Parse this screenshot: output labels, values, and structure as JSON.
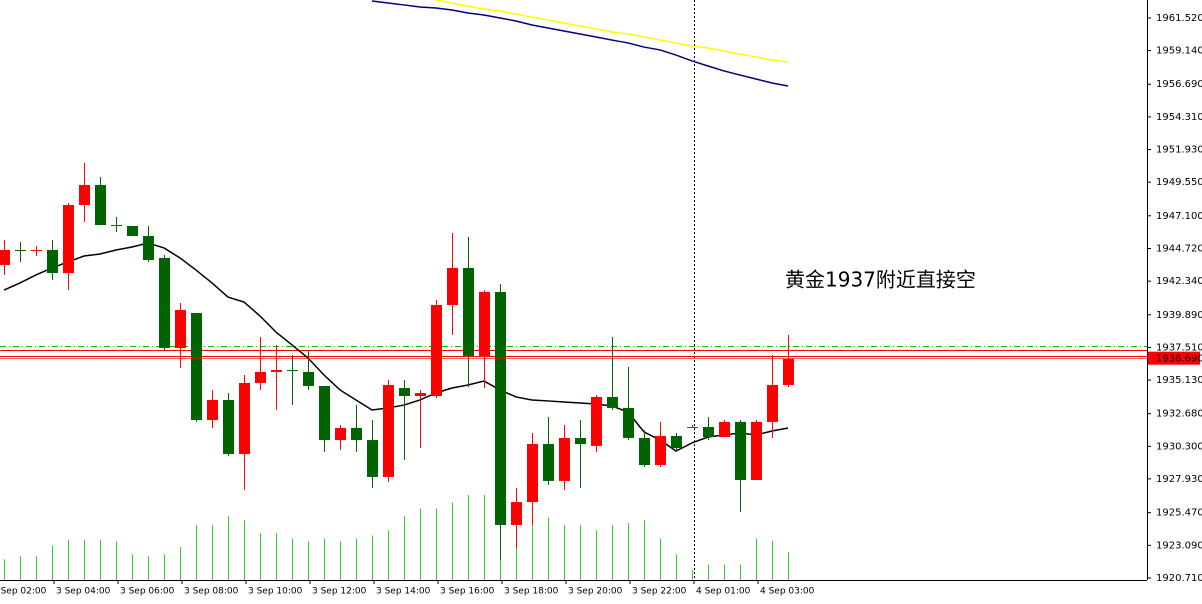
{
  "chart_data": {
    "type": "candlestick",
    "categories": [
      "3 Sep 02:00",
      null,
      null,
      null,
      "3 Sep 04:00",
      null,
      null,
      null,
      "3 Sep 06:00",
      null,
      null,
      null,
      "3 Sep 08:00",
      null,
      null,
      null,
      "3 Sep 10:00",
      null,
      null,
      null,
      "3 Sep 12:00",
      null,
      null,
      null,
      "3 Sep 14:00",
      null,
      null,
      null,
      "3 Sep 16:00",
      null,
      null,
      null,
      "3 Sep 18:00",
      null,
      null,
      null,
      "3 Sep 20:00",
      null,
      null,
      null,
      "3 Sep 22:00",
      null,
      null,
      null,
      "4 Sep 01:00",
      null,
      null,
      null,
      "4 Sep 03:00",
      null
    ],
    "open": [
      1943.52,
      1944.61,
      1944.58,
      1944.61,
      1942.93,
      1947.89,
      1949.35,
      1946.43,
      1946.36,
      1945.63,
      1944.03,
      1937.47,
      1940.02,
      1932.22,
      1933.68,
      1929.74,
      1934.92,
      1935.72,
      1935.86,
      1935.72,
      1934.7,
      1930.76,
      1931.64,
      1930.76,
      1928.07,
      1934.55,
      1933.97,
      1933.97,
      1940.6,
      1943.3,
      1936.89,
      1941.55,
      1924.57,
      1926.24,
      1930.47,
      1927.78,
      1930.91,
      1930.33,
      1933.9,
      1933.1,
      1930.91,
      1928.94,
      1931.06,
      1931.68,
      1931.71,
      1930.98,
      1932.08,
      1927.85,
      1932.08,
      1934.77
    ],
    "high": [
      1945.34,
      1945.19,
      1944.9,
      1945.34,
      1948.04,
      1950.95,
      1949.93,
      1947.02,
      1946.36,
      1946.36,
      1944.25,
      1940.75,
      1940.02,
      1934.41,
      1934.19,
      1935.5,
      1938.27,
      1937.69,
      1936.96,
      1937.32,
      1934.7,
      1931.86,
      1933.31,
      1932.22,
      1935.14,
      1935.14,
      1934.41,
      1940.97,
      1945.85,
      1945.56,
      1941.69,
      1942.13,
      1927.27,
      1931.27,
      1932.44,
      1931.86,
      1932.22,
      1934.04,
      1938.27,
      1936.08,
      1931.49,
      1932.08,
      1931.27,
      1931.86,
      1932.44,
      1932.22,
      1932.22,
      1932.22,
      1936.96,
      1938.42
    ],
    "low": [
      1942.79,
      1943.74,
      1944.17,
      1942.42,
      1941.69,
      1946.65,
      1946.43,
      1945.92,
      1945.63,
      1943.74,
      1937.32,
      1936.01,
      1932.08,
      1931.64,
      1929.6,
      1927.12,
      1934.41,
      1932.95,
      1933.31,
      1934.41,
      1929.89,
      1930.03,
      1929.89,
      1927.27,
      1927.7,
      1929.31,
      1930.18,
      1933.82,
      1938.42,
      1934.63,
      1934.55,
      1922.02,
      1922.89,
      1924.57,
      1927.48,
      1927.12,
      1927.27,
      1929.89,
      1932.95,
      1930.76,
      1928.8,
      1928.8,
      1929.89,
      1931.64,
      1930.76,
      1930.98,
      1925.52,
      1927.85,
      1930.91,
      1934.63
    ],
    "close": [
      1944.61,
      1944.58,
      1944.61,
      1942.93,
      1947.89,
      1949.35,
      1946.43,
      1946.36,
      1945.63,
      1943.88,
      1937.47,
      1940.24,
      1932.22,
      1933.68,
      1929.74,
      1934.92,
      1935.72,
      1935.86,
      1935.8,
      1934.7,
      1930.76,
      1931.64,
      1930.76,
      1928.07,
      1934.77,
      1933.97,
      1934.19,
      1940.6,
      1943.3,
      1936.89,
      1941.55,
      1924.57,
      1926.24,
      1930.47,
      1927.78,
      1930.91,
      1930.47,
      1933.9,
      1933.1,
      1930.91,
      1928.94,
      1931.06,
      1930.18,
      1931.71,
      1930.98,
      1932.08,
      1927.85,
      1932.08,
      1934.77,
      1936.69
    ],
    "up_color": "#ff0000",
    "down_color": "#006400",
    "volume": {
      "color": "#33cc33",
      "values": [
        20,
        23,
        23,
        33,
        39,
        39,
        39,
        37,
        25,
        23,
        25,
        32,
        53,
        53,
        62,
        58,
        45,
        45,
        40,
        37,
        40,
        37,
        40,
        43,
        48,
        62,
        69,
        69,
        75,
        82,
        82,
        80,
        68,
        60,
        60,
        53,
        53,
        48,
        53,
        55,
        58,
        40,
        25,
        10,
        15,
        15,
        15,
        40,
        38,
        27
      ]
    },
    "overlays": [
      {
        "color": "#000000",
        "values": [
          1941.69,
          1942.21,
          1942.79,
          1943.3,
          1943.74,
          1944.17,
          1944.32,
          1944.61,
          1944.83,
          1945.12,
          1944.76,
          1944.03,
          1943.15,
          1942.21,
          1941.18,
          1940.82,
          1939.8,
          1938.63,
          1937.69,
          1936.74,
          1935.5,
          1934.41,
          1933.68,
          1932.95,
          1933.1,
          1933.31,
          1933.68,
          1934.19,
          1934.55,
          1934.77,
          1935.06,
          1934.41,
          1933.9,
          1933.68,
          1933.61,
          1933.53,
          1933.46,
          1933.39,
          1933.24,
          1932.8,
          1931.35,
          1930.76,
          1929.96,
          1930.55,
          1930.98,
          1931.13,
          1931.27,
          1931.13,
          1931.42,
          1931.64
        ]
      },
      {
        "color": "#ffff00",
        "values": [
          null,
          null,
          null,
          null,
          null,
          null,
          null,
          null,
          null,
          null,
          null,
          null,
          null,
          null,
          null,
          null,
          null,
          null,
          null,
          null,
          null,
          null,
          null,
          null,
          null,
          null,
          null,
          1962.83,
          1962.61,
          1962.39,
          1962.17,
          1962.03,
          1961.81,
          1961.59,
          1961.37,
          1961.15,
          1960.94,
          1960.72,
          1960.5,
          1960.35,
          1960.13,
          1959.91,
          1959.7,
          1959.48,
          1959.33,
          1959.11,
          1958.89,
          1958.68,
          1958.46,
          1958.31
        ]
      },
      {
        "color": "#000080",
        "values": [
          null,
          null,
          null,
          null,
          null,
          null,
          null,
          null,
          null,
          null,
          null,
          null,
          null,
          null,
          null,
          null,
          null,
          null,
          null,
          null,
          null,
          null,
          null,
          1962.76,
          1962.61,
          1962.47,
          1962.32,
          1962.25,
          1962.1,
          1961.88,
          1961.74,
          1961.52,
          1961.3,
          1961.01,
          1960.79,
          1960.57,
          1960.35,
          1960.13,
          1959.91,
          1959.7,
          1959.4,
          1959.19,
          1958.82,
          1958.39,
          1958.02,
          1957.66,
          1957.36,
          1957.07,
          1956.78,
          1956.56
        ]
      }
    ],
    "levels": [
      {
        "value": 1937.61,
        "color": "#00c000",
        "style": "dashdot"
      },
      {
        "value": 1937.32,
        "color": "#ff0000",
        "style": "solid"
      },
      {
        "value": 1936.89,
        "color": "#ff0000",
        "style": "solid"
      }
    ],
    "current_price": {
      "value": 1936.69,
      "label": "1936.690",
      "color": "#ff0000"
    },
    "annotation": {
      "text": "黄金1937附近直接空",
      "color": "#ff2020"
    },
    "ylim": [
      1920.56,
      1962.83
    ],
    "yticks": [
      {
        "value": 1961.52,
        "label": "1961.520"
      },
      {
        "value": 1959.14,
        "label": "1959.140"
      },
      {
        "value": 1956.69,
        "label": "1956.690"
      },
      {
        "value": 1954.31,
        "label": "1954.310"
      },
      {
        "value": 1951.93,
        "label": "1951.930"
      },
      {
        "value": 1949.55,
        "label": "1949.550"
      },
      {
        "value": 1947.1,
        "label": "1947.100"
      },
      {
        "value": 1944.72,
        "label": "1944.720"
      },
      {
        "value": 1942.34,
        "label": "1942.340"
      },
      {
        "value": 1939.89,
        "label": "1939.890"
      },
      {
        "value": 1937.51,
        "label": "1937.510"
      },
      {
        "value": 1935.13,
        "label": "1935.130"
      },
      {
        "value": 1932.68,
        "label": "1932.680"
      },
      {
        "value": 1930.3,
        "label": "1930.300"
      },
      {
        "value": 1927.93,
        "label": "1927.930"
      },
      {
        "value": 1925.47,
        "label": "1925.470"
      },
      {
        "value": 1923.09,
        "label": "1923.090"
      },
      {
        "value": 1920.71,
        "label": "1920.710"
      }
    ]
  }
}
